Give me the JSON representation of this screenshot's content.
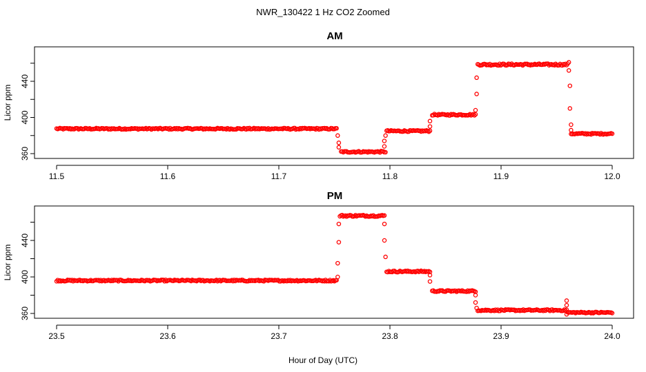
{
  "figure": {
    "title": "NWR_130422  1 Hz CO2 Zoomed",
    "xlabel": "Hour of Day (UTC)"
  },
  "colors": {
    "points": "#ff0000",
    "point_edge": "#e00000",
    "axis": "#000000"
  },
  "chart_data": [
    {
      "type": "scatter",
      "title": "AM",
      "xlabel": "",
      "ylabel": "Licor ppm",
      "xlim": [
        11.5,
        12.0
      ],
      "ylim": [
        355,
        470
      ],
      "xticks": [
        "11.5",
        "11.6",
        "11.7",
        "11.8",
        "11.9",
        "12.0"
      ],
      "yticks": [
        "360",
        "400",
        "440"
      ],
      "marker": "open-circle",
      "sample_rate": "1 Hz",
      "segments": [
        {
          "x_start": 11.5,
          "x_end": 11.752,
          "y": 387.5,
          "noise": 0.8
        },
        {
          "x_start": 11.756,
          "x_end": 11.796,
          "y": 362.0,
          "noise": 0.8
        },
        {
          "x_start": 11.797,
          "x_end": 11.836,
          "y": 385.0,
          "noise": 0.8
        },
        {
          "x_start": 11.838,
          "x_end": 11.877,
          "y": 403.0,
          "noise": 0.8
        },
        {
          "x_start": 11.879,
          "x_end": 11.96,
          "y": 458.5,
          "noise": 1.0
        },
        {
          "x_start": 11.963,
          "x_end": 12.0,
          "y": 382.0,
          "noise": 0.8
        }
      ],
      "transitions": [
        {
          "x": 11.753,
          "y": 380
        },
        {
          "x": 11.754,
          "y": 372
        },
        {
          "x": 11.754,
          "y": 367
        },
        {
          "x": 11.795,
          "y": 368
        },
        {
          "x": 11.795,
          "y": 374
        },
        {
          "x": 11.796,
          "y": 380
        },
        {
          "x": 11.836,
          "y": 390
        },
        {
          "x": 11.836,
          "y": 396
        },
        {
          "x": 11.877,
          "y": 408
        },
        {
          "x": 11.878,
          "y": 426
        },
        {
          "x": 11.878,
          "y": 444
        },
        {
          "x": 11.961,
          "y": 461
        },
        {
          "x": 11.961,
          "y": 452
        },
        {
          "x": 11.962,
          "y": 435
        },
        {
          "x": 11.962,
          "y": 410
        },
        {
          "x": 11.963,
          "y": 392
        },
        {
          "x": 11.963,
          "y": 386
        }
      ]
    },
    {
      "type": "scatter",
      "title": "PM",
      "xlabel": "",
      "ylabel": "Licor ppm",
      "xlim": [
        23.5,
        24.0
      ],
      "ylim": [
        355,
        474
      ],
      "xticks": [
        "23.5",
        "23.6",
        "23.7",
        "23.8",
        "23.9",
        "24.0"
      ],
      "yticks": [
        "360",
        "400",
        "440"
      ],
      "marker": "open-circle",
      "sample_rate": "1 Hz",
      "segments": [
        {
          "x_start": 23.5,
          "x_end": 23.752,
          "y": 396.0,
          "noise": 0.8
        },
        {
          "x_start": 23.755,
          "x_end": 23.795,
          "y": 467.0,
          "noise": 0.9
        },
        {
          "x_start": 23.797,
          "x_end": 23.836,
          "y": 406.0,
          "noise": 0.8
        },
        {
          "x_start": 23.838,
          "x_end": 23.877,
          "y": 384.5,
          "noise": 0.8
        },
        {
          "x_start": 23.879,
          "x_end": 23.958,
          "y": 363.5,
          "noise": 0.8
        },
        {
          "x_start": 23.96,
          "x_end": 24.0,
          "y": 361.0,
          "noise": 0.7
        }
      ],
      "transitions": [
        {
          "x": 23.753,
          "y": 400
        },
        {
          "x": 23.753,
          "y": 415
        },
        {
          "x": 23.754,
          "y": 438
        },
        {
          "x": 23.754,
          "y": 458
        },
        {
          "x": 23.795,
          "y": 458
        },
        {
          "x": 23.795,
          "y": 440
        },
        {
          "x": 23.796,
          "y": 422
        },
        {
          "x": 23.836,
          "y": 402
        },
        {
          "x": 23.836,
          "y": 395
        },
        {
          "x": 23.877,
          "y": 380
        },
        {
          "x": 23.877,
          "y": 372
        },
        {
          "x": 23.878,
          "y": 366
        },
        {
          "x": 23.959,
          "y": 374
        },
        {
          "x": 23.959,
          "y": 369
        },
        {
          "x": 23.959,
          "y": 364
        },
        {
          "x": 23.959,
          "y": 359
        }
      ]
    }
  ]
}
